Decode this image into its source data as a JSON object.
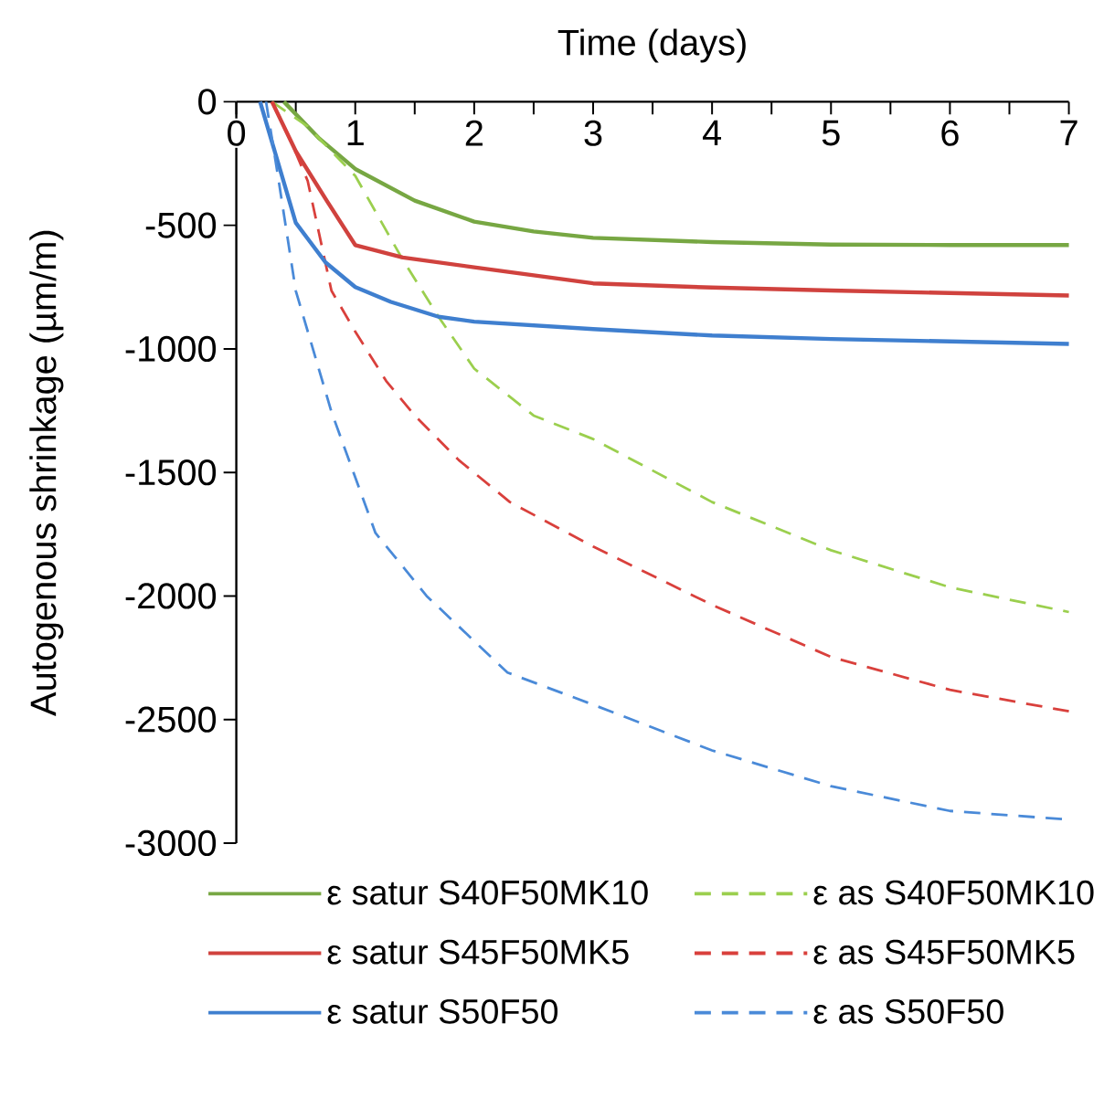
{
  "chart_data": {
    "type": "line",
    "xlabel": "Time (days)",
    "ylabel": "Autogenous shrinkage (µm/m)",
    "xlim": [
      0,
      7
    ],
    "ylim": [
      -3000,
      0
    ],
    "xticks": [
      0,
      {
        "value": 0.5,
        "label": null
      },
      1,
      {
        "value": 1.5,
        "label": null
      },
      2,
      {
        "value": 2.5,
        "label": null
      },
      3,
      {
        "value": 3.5,
        "label": null
      },
      4,
      {
        "value": 4.5,
        "label": null
      },
      5,
      {
        "value": 5.5,
        "label": null
      },
      6,
      {
        "value": 6.5,
        "label": null
      },
      7
    ],
    "yticks": [
      -3000,
      -2500,
      -2000,
      -1500,
      -1000,
      -500,
      0
    ],
    "legend": "bottom",
    "series": [
      {
        "name": "ε satur S40F50MK10",
        "color": "#77a743",
        "line_style": "solid",
        "x": [
          0.4,
          0.7,
          1,
          1.5,
          2,
          2.5,
          3,
          4,
          5,
          6,
          7
        ],
        "values": [
          0,
          -150,
          -272,
          -400,
          -485,
          -525,
          -551,
          -568,
          -578,
          -580,
          -580
        ]
      },
      {
        "name": "ε as S40F50MK10",
        "color": "#9bcf4e",
        "line_style": "dashed",
        "x": [
          0.3,
          0.6,
          1,
          1.4,
          1.7,
          2,
          2.5,
          3,
          4,
          5,
          6,
          7
        ],
        "values": [
          0,
          -100,
          -300,
          -640,
          -870,
          -1080,
          -1270,
          -1365,
          -1620,
          -1815,
          -1965,
          -2065
        ]
      },
      {
        "name": "ε satur S45F50MK5",
        "color": "#d0423e",
        "line_style": "solid",
        "x": [
          0.3,
          0.5,
          0.76,
          1,
          1.4,
          2,
          3,
          4,
          5,
          6,
          7
        ],
        "values": [
          0,
          -200,
          -400,
          -580,
          -630,
          -670,
          -735,
          -752,
          -764,
          -774,
          -784
        ]
      },
      {
        "name": "ε as S45F50MK5",
        "color": "#d9403c",
        "line_style": "dashed",
        "x": [
          0.3,
          0.45,
          0.6,
          0.8,
          1.0,
          1.26,
          1.5,
          1.87,
          2.3,
          3,
          4,
          5,
          6,
          7
        ],
        "values": [
          0,
          -150,
          -320,
          -765,
          -930,
          -1130,
          -1270,
          -1450,
          -1620,
          -1800,
          -2036,
          -2247,
          -2380,
          -2467
        ]
      },
      {
        "name": "ε satur S50F50",
        "color": "#3f7fcf",
        "line_style": "solid",
        "x": [
          0.2,
          0.5,
          0.75,
          1,
          1.3,
          1.7,
          2,
          3,
          4,
          5,
          6,
          7
        ],
        "values": [
          0,
          -490,
          -650,
          -750,
          -810,
          -870,
          -890,
          -920,
          -946,
          -960,
          -970,
          -980
        ]
      },
      {
        "name": "ε as S50F50",
        "color": "#4a8ad8",
        "line_style": "dashed",
        "x": [
          0.25,
          0.35,
          0.5,
          0.8,
          1.17,
          1.6,
          2.28,
          3,
          4,
          5,
          6,
          7
        ],
        "values": [
          0,
          -300,
          -765,
          -1255,
          -1745,
          -2000,
          -2310,
          -2440,
          -2625,
          -2770,
          -2870,
          -2905
        ]
      }
    ]
  }
}
